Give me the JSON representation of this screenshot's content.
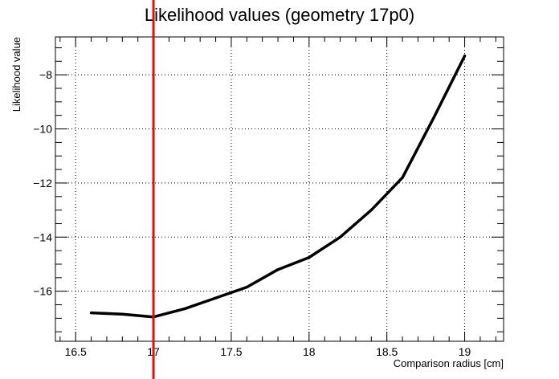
{
  "chart_data": {
    "type": "line",
    "title": "Likelihood values (geometry 17p0)",
    "xlabel": "Comparison radius [cm]",
    "ylabel": "Likelihood value",
    "xlim": [
      16.37,
      19.25
    ],
    "ylim": [
      -17.85,
      -6.6
    ],
    "x_ticks": [
      16.5,
      17,
      17.5,
      18,
      18.5,
      19
    ],
    "x_tick_labels": [
      "16.5",
      "17",
      "17.5",
      "18",
      "18.5",
      "19"
    ],
    "y_ticks": [
      -16,
      -14,
      -12,
      -10,
      -8
    ],
    "y_tick_labels": [
      "−16",
      "−14",
      "−12",
      "−10",
      "−8"
    ],
    "grid": true,
    "series": [
      {
        "color": "#000000",
        "x": [
          16.6,
          16.8,
          17.0,
          17.2,
          17.4,
          17.6,
          17.8,
          18.0,
          18.2,
          18.4,
          18.6,
          18.8,
          19.0
        ],
        "y": [
          -16.8,
          -16.85,
          -16.95,
          -16.65,
          -16.25,
          -15.85,
          -15.2,
          -14.75,
          -14.0,
          -13.0,
          -11.8,
          -9.6,
          -7.3
        ]
      }
    ],
    "vline": {
      "x": 17.0,
      "color": "#e01010"
    }
  }
}
